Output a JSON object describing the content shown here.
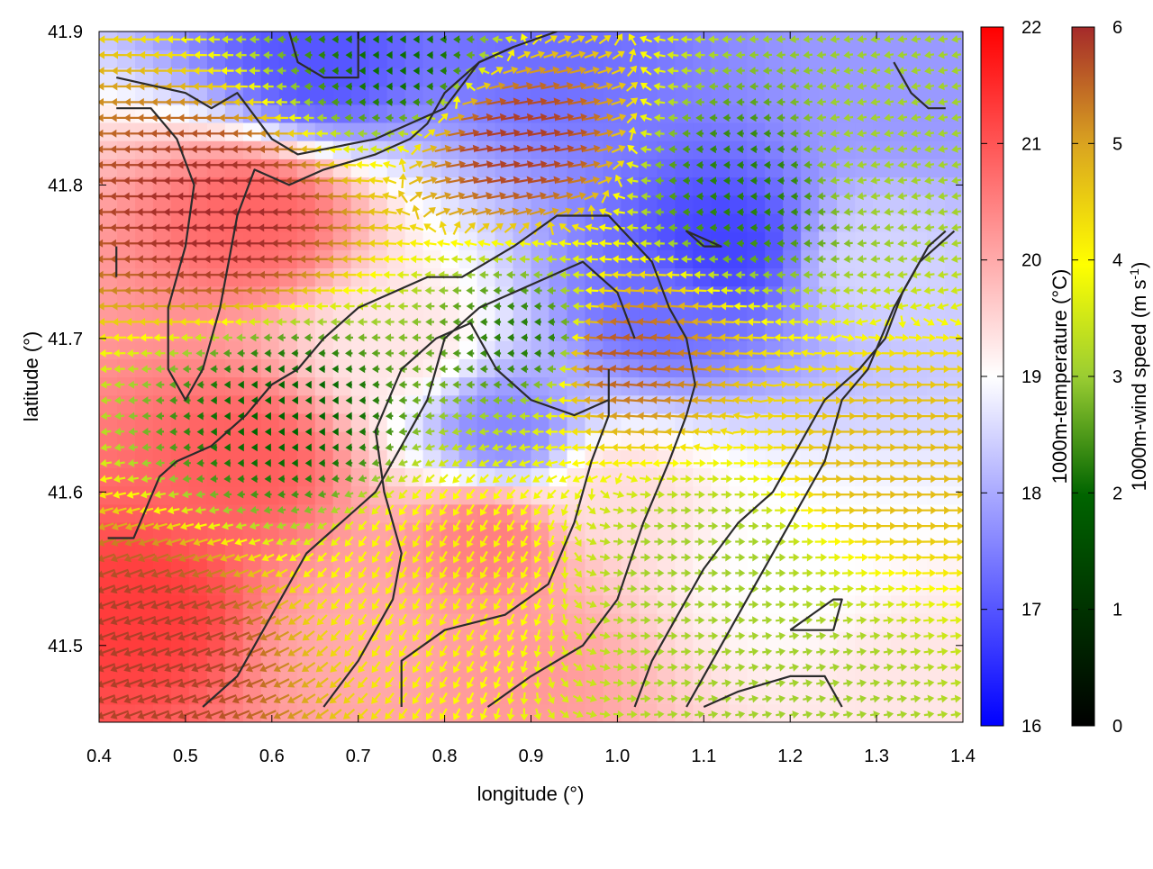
{
  "chart_data": {
    "type": "heatmap",
    "xlabel": "longitude (°)",
    "ylabel": "latitude (°)",
    "xlim": [
      0.4,
      1.4
    ],
    "ylim": [
      41.45,
      41.9
    ],
    "xticks": [
      "0.4",
      "0.5",
      "0.6",
      "0.7",
      "0.8",
      "0.9",
      "1.0",
      "1.1",
      "1.2",
      "1.3",
      "1.4"
    ],
    "xtick_values": [
      0.4,
      0.5,
      0.6,
      0.7,
      0.8,
      0.9,
      1.0,
      1.1,
      1.2,
      1.3,
      1.4
    ],
    "yticks": [
      "41.5",
      "41.6",
      "41.7",
      "41.8",
      "41.9"
    ],
    "ytick_values": [
      41.5,
      41.6,
      41.7,
      41.8,
      41.9
    ],
    "temperature_colorbar": {
      "label": "1000m-temperature (°C)",
      "range": [
        16,
        22
      ],
      "ticks": [
        "16",
        "17",
        "18",
        "19",
        "20",
        "21",
        "22"
      ],
      "colors": [
        "#0000ff",
        "#ffffff",
        "#ff0000"
      ]
    },
    "wind_colorbar": {
      "label_main": "1000m-wind speed (m s",
      "label_sup": "-1",
      "label_end": ")",
      "range": [
        0,
        6
      ],
      "ticks": [
        "0",
        "1",
        "2",
        "3",
        "4",
        "5",
        "6"
      ],
      "colors": [
        "#000000",
        "#006400",
        "#9acd32",
        "#ffff00",
        "#daa520",
        "#a52a2a"
      ]
    },
    "temperature_field_centers": [
      {
        "lon": 0.45,
        "lat": 41.52,
        "t": 21.3
      },
      {
        "lon": 0.58,
        "lat": 41.78,
        "t": 20.8
      },
      {
        "lon": 0.57,
        "lat": 41.62,
        "t": 20.9
      },
      {
        "lon": 0.85,
        "lat": 41.57,
        "t": 20.5
      },
      {
        "lon": 0.88,
        "lat": 41.48,
        "t": 20.2
      },
      {
        "lon": 0.7,
        "lat": 41.5,
        "t": 20.0
      },
      {
        "lon": 0.65,
        "lat": 41.88,
        "t": 17.0
      },
      {
        "lon": 0.92,
        "lat": 41.89,
        "t": 17.3
      },
      {
        "lon": 1.12,
        "lat": 41.76,
        "t": 16.8
      },
      {
        "lon": 1.05,
        "lat": 41.72,
        "t": 17.3
      },
      {
        "lon": 0.87,
        "lat": 41.64,
        "t": 17.6
      },
      {
        "lon": 1.35,
        "lat": 41.86,
        "t": 17.8
      },
      {
        "lon": 1.3,
        "lat": 41.75,
        "t": 18.5
      },
      {
        "lon": 1.2,
        "lat": 41.55,
        "t": 19.0
      },
      {
        "lon": 1.35,
        "lat": 41.48,
        "t": 19.3
      },
      {
        "lon": 1.0,
        "lat": 41.6,
        "t": 19.4
      },
      {
        "lon": 0.75,
        "lat": 41.7,
        "t": 19.3
      }
    ],
    "wind_field_regions": [
      {
        "lon": 0.55,
        "lat": 41.78,
        "speed": 6.0,
        "dir_deg": 180
      },
      {
        "lon": 0.45,
        "lat": 41.5,
        "speed": 5.8,
        "dir_deg": 200
      },
      {
        "lon": 0.88,
        "lat": 41.83,
        "speed": 5.8,
        "dir_deg": 10
      },
      {
        "lon": 1.0,
        "lat": 41.69,
        "speed": 5.5,
        "dir_deg": 175
      },
      {
        "lon": 0.62,
        "lat": 41.65,
        "speed": 1.2,
        "dir_deg": 180
      },
      {
        "lon": 0.9,
        "lat": 41.7,
        "speed": 1.5,
        "dir_deg": 180
      },
      {
        "lon": 1.15,
        "lat": 41.8,
        "speed": 1.5,
        "dir_deg": 180
      },
      {
        "lon": 0.75,
        "lat": 41.88,
        "speed": 1.3,
        "dir_deg": 180
      },
      {
        "lon": 1.1,
        "lat": 41.55,
        "speed": 2.5,
        "dir_deg": 0
      },
      {
        "lon": 1.32,
        "lat": 41.62,
        "speed": 4.5,
        "dir_deg": 0
      },
      {
        "lon": 1.3,
        "lat": 41.82,
        "speed": 2.5,
        "dir_deg": 190
      },
      {
        "lon": 0.8,
        "lat": 41.55,
        "speed": 3.8,
        "dir_deg": 240
      },
      {
        "lon": 1.2,
        "lat": 41.47,
        "speed": 2.5,
        "dir_deg": 10
      }
    ],
    "contour_lines": [
      [
        [
          0.42,
          41.76
        ],
        [
          0.42,
          41.74
        ]
      ],
      [
        [
          0.42,
          41.87
        ],
        [
          0.5,
          41.86
        ],
        [
          0.53,
          41.85
        ],
        [
          0.56,
          41.86
        ],
        [
          0.6,
          41.83
        ],
        [
          0.63,
          41.82
        ],
        [
          0.72,
          41.83
        ],
        [
          0.76,
          41.84
        ],
        [
          0.8,
          41.85
        ],
        [
          0.84,
          41.88
        ],
        [
          0.88,
          41.89
        ],
        [
          0.93,
          41.9
        ]
      ],
      [
        [
          0.42,
          41.85
        ],
        [
          0.46,
          41.85
        ],
        [
          0.49,
          41.83
        ],
        [
          0.51,
          41.8
        ],
        [
          0.5,
          41.76
        ],
        [
          0.48,
          41.72
        ],
        [
          0.48,
          41.68
        ],
        [
          0.5,
          41.66
        ],
        [
          0.52,
          41.68
        ],
        [
          0.54,
          41.72
        ],
        [
          0.56,
          41.78
        ],
        [
          0.58,
          41.81
        ],
        [
          0.62,
          41.8
        ],
        [
          0.66,
          41.81
        ],
        [
          0.72,
          41.82
        ],
        [
          0.76,
          41.83
        ],
        [
          0.78,
          41.84
        ],
        [
          0.8,
          41.86
        ],
        [
          0.84,
          41.88
        ],
        [
          0.88,
          41.89
        ]
      ],
      [
        [
          0.41,
          41.57
        ],
        [
          0.44,
          41.57
        ],
        [
          0.47,
          41.61
        ],
        [
          0.49,
          41.62
        ],
        [
          0.53,
          41.63
        ],
        [
          0.57,
          41.65
        ],
        [
          0.6,
          41.67
        ],
        [
          0.63,
          41.68
        ],
        [
          0.66,
          41.7
        ],
        [
          0.7,
          41.72
        ],
        [
          0.74,
          41.73
        ],
        [
          0.78,
          41.74
        ],
        [
          0.82,
          41.74
        ],
        [
          0.88,
          41.76
        ],
        [
          0.93,
          41.78
        ],
        [
          0.99,
          41.78
        ],
        [
          1.04,
          41.75
        ],
        [
          1.06,
          41.72
        ],
        [
          1.08,
          41.7
        ],
        [
          1.09,
          41.67
        ],
        [
          1.08,
          41.65
        ],
        [
          1.06,
          41.62
        ],
        [
          1.03,
          41.58
        ],
        [
          1.0,
          41.53
        ],
        [
          0.96,
          41.5
        ],
        [
          0.9,
          41.48
        ],
        [
          0.85,
          41.46
        ]
      ],
      [
        [
          0.52,
          41.46
        ],
        [
          0.56,
          41.48
        ],
        [
          0.6,
          41.52
        ],
        [
          0.64,
          41.56
        ],
        [
          0.68,
          41.58
        ],
        [
          0.72,
          41.6
        ],
        [
          0.75,
          41.63
        ],
        [
          0.78,
          41.66
        ],
        [
          0.8,
          41.7
        ],
        [
          0.84,
          41.72
        ],
        [
          0.88,
          41.73
        ],
        [
          0.92,
          41.74
        ],
        [
          0.96,
          41.75
        ],
        [
          1.0,
          41.73
        ],
        [
          1.02,
          41.7
        ]
      ],
      [
        [
          0.66,
          41.46
        ],
        [
          0.7,
          41.49
        ],
        [
          0.74,
          41.53
        ],
        [
          0.75,
          41.56
        ],
        [
          0.73,
          41.6
        ],
        [
          0.72,
          41.64
        ],
        [
          0.75,
          41.68
        ],
        [
          0.79,
          41.7
        ],
        [
          0.83,
          41.71
        ],
        [
          0.86,
          41.68
        ],
        [
          0.9,
          41.66
        ],
        [
          0.95,
          41.65
        ],
        [
          0.99,
          41.66
        ]
      ],
      [
        [
          0.75,
          41.46
        ],
        [
          0.75,
          41.49
        ],
        [
          0.8,
          41.51
        ],
        [
          0.87,
          41.52
        ],
        [
          0.92,
          41.54
        ],
        [
          0.95,
          41.58
        ],
        [
          0.97,
          41.62
        ],
        [
          0.99,
          41.65
        ],
        [
          0.99,
          41.68
        ]
      ],
      [
        [
          1.02,
          41.46
        ],
        [
          1.04,
          41.49
        ],
        [
          1.07,
          41.52
        ],
        [
          1.1,
          41.55
        ],
        [
          1.14,
          41.58
        ],
        [
          1.18,
          41.6
        ],
        [
          1.21,
          41.63
        ],
        [
          1.24,
          41.66
        ],
        [
          1.28,
          41.68
        ],
        [
          1.31,
          41.7
        ],
        [
          1.33,
          41.73
        ],
        [
          1.36,
          41.76
        ],
        [
          1.38,
          41.77
        ]
      ],
      [
        [
          1.08,
          41.46
        ],
        [
          1.12,
          41.5
        ],
        [
          1.16,
          41.54
        ],
        [
          1.2,
          41.58
        ],
        [
          1.24,
          41.62
        ],
        [
          1.26,
          41.66
        ],
        [
          1.29,
          41.68
        ],
        [
          1.32,
          41.72
        ],
        [
          1.35,
          41.75
        ],
        [
          1.39,
          41.77
        ]
      ],
      [
        [
          1.2,
          41.51
        ],
        [
          1.25,
          41.51
        ],
        [
          1.26,
          41.53
        ],
        [
          1.25,
          41.53
        ],
        [
          1.2,
          41.51
        ]
      ],
      [
        [
          1.1,
          41.76
        ],
        [
          1.12,
          41.76
        ],
        [
          1.08,
          41.77
        ],
        [
          1.1,
          41.76
        ]
      ],
      [
        [
          1.32,
          41.88
        ],
        [
          1.34,
          41.86
        ],
        [
          1.36,
          41.85
        ],
        [
          1.38,
          41.85
        ]
      ],
      [
        [
          0.62,
          41.9
        ],
        [
          0.63,
          41.88
        ],
        [
          0.66,
          41.87
        ],
        [
          0.7,
          41.87
        ],
        [
          0.7,
          41.9
        ]
      ],
      [
        [
          1.1,
          41.46
        ],
        [
          1.14,
          41.47
        ],
        [
          1.2,
          41.48
        ],
        [
          1.24,
          41.48
        ],
        [
          1.26,
          41.46
        ]
      ]
    ]
  }
}
